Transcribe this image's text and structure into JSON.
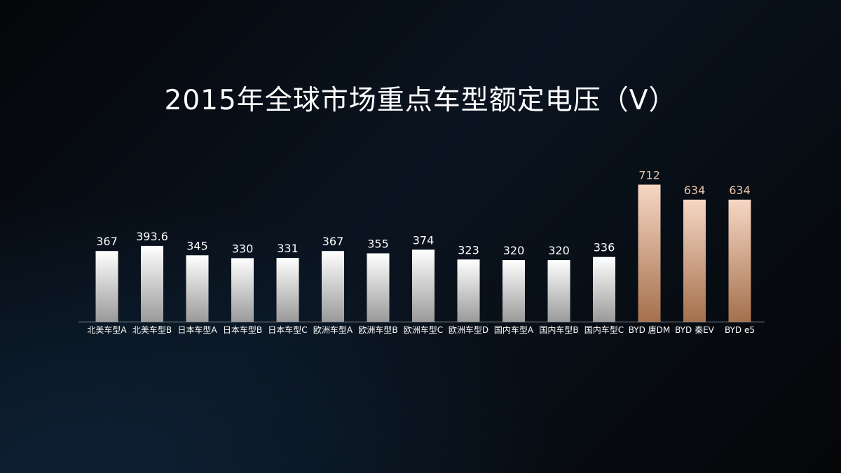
{
  "title": "2015年全球市场重点车型额定电压（V）",
  "colors": {
    "standard_bar_top": "#ffffff",
    "standard_bar_bottom": "#9a9a9a",
    "byd_bar_top": "#f6d7c4",
    "byd_bar_bottom": "#a5704c",
    "standard_label": "#ffffff",
    "byd_label": "#e8c3a8",
    "axis": "#8e949b",
    "category_text": "#ffffff"
  },
  "chart_data": {
    "type": "bar",
    "title": "2015年全球市场重点车型额定电压（V）",
    "categories": [
      "北美车型A",
      "北美车型B",
      "日本车型A",
      "日本车型B",
      "日本车型C",
      "欧洲车型A",
      "欧洲车型B",
      "欧洲车型C",
      "欧洲车型D",
      "国内车型A",
      "国内车型B",
      "国内车型C",
      "BYD 唐DM",
      "BYD 秦EV",
      "BYD e5"
    ],
    "values": [
      367,
      393.6,
      345,
      330,
      331,
      367,
      355,
      374,
      323,
      320,
      320,
      336,
      712,
      634,
      634
    ],
    "value_labels": [
      "367",
      "393.6",
      "345",
      "330",
      "331",
      "367",
      "355",
      "374",
      "323",
      "320",
      "320",
      "336",
      "712",
      "634",
      "634"
    ],
    "highlight": [
      false,
      false,
      false,
      false,
      false,
      false,
      false,
      false,
      false,
      false,
      false,
      false,
      true,
      true,
      true
    ],
    "xlabel": "",
    "ylabel": "",
    "ylim": [
      0,
      720
    ],
    "grid": false,
    "legend": "none"
  }
}
